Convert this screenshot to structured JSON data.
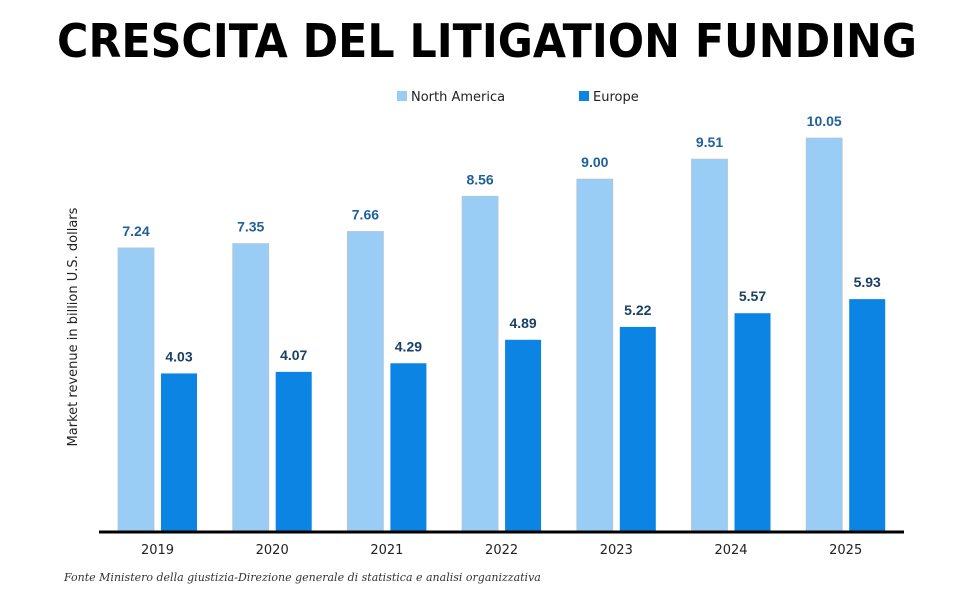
{
  "title": "CRESCITA DEL LITIGATION FUNDING",
  "source": "Fonte Ministero della giustizia-Direzione generale di statistica e analisi organizzativa",
  "colors": {
    "north_america": "#99cdf5",
    "europe": "#0b84e3",
    "label_na": "#1f5f9a",
    "label_eu": "#1a3f66",
    "axis": "#000000"
  },
  "chart_data": {
    "type": "bar",
    "title": "CRESCITA DEL LITIGATION FUNDING",
    "xlabel": "",
    "ylabel": "Market revenue in billion U.S. dollars",
    "categories": [
      "2019",
      "2020",
      "2021",
      "2022",
      "2023",
      "2024",
      "2025"
    ],
    "series": [
      {
        "name": "North America",
        "values": [
          7.24,
          7.35,
          7.66,
          8.56,
          9.0,
          9.51,
          10.05
        ],
        "labels": [
          "7.24",
          "7.35",
          "7.66",
          "8.56",
          "9.00",
          "9.51",
          "10.05"
        ]
      },
      {
        "name": "Europe",
        "values": [
          4.03,
          4.07,
          4.29,
          4.89,
          5.22,
          5.57,
          5.93
        ],
        "labels": [
          "4.03",
          "4.07",
          "4.29",
          "4.89",
          "5.22",
          "5.57",
          "5.93"
        ]
      }
    ],
    "ylim": [
      0,
      10.5
    ],
    "grid": false,
    "legend": "top-center",
    "data_labels": true
  }
}
